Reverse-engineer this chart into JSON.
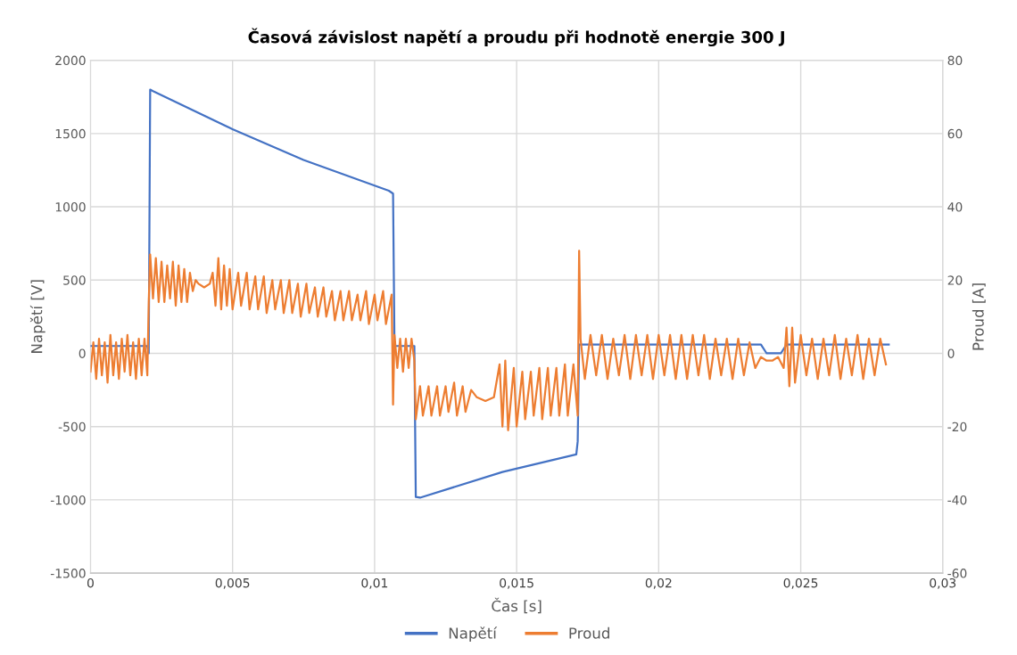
{
  "chart_data": {
    "type": "line",
    "title": "Časová závislost napětí a proudu při hodnotě energie 300 J",
    "xlabel": "Čas [s]",
    "ylabel": "Napětí [V]",
    "y2label": "Proud [A]",
    "xlim": [
      0,
      0.03
    ],
    "xticks": [
      0,
      {
        "value": 0.005,
        "label": "0,005"
      },
      {
        "value": 0.01,
        "label": "0,01"
      },
      {
        "value": 0.015,
        "label": "0,015"
      },
      {
        "value": 0.02,
        "label": "0,02"
      },
      {
        "value": 0.025,
        "label": "0,025"
      },
      {
        "value": 0.03,
        "label": "0,03"
      }
    ],
    "ylim": [
      -1500,
      2000
    ],
    "yticks": [
      -1500,
      -1000,
      -500,
      0,
      500,
      1000,
      1500,
      2000
    ],
    "y2lim": [
      -60,
      80
    ],
    "y2ticks": [
      -60,
      -40,
      -20,
      0,
      20,
      40,
      60,
      80
    ],
    "grid": true,
    "legend": "bottom",
    "marker": "none",
    "line_style": "solid",
    "series": [
      {
        "name": "Napětí",
        "color": "#4472c4",
        "x": [
          0,
          0.002,
          0.00205,
          0.0021,
          0.0022,
          0.005,
          0.0075,
          0.0105,
          0.01065,
          0.0107,
          0.0114,
          0.01145,
          0.0116,
          0.0145,
          0.0171,
          0.01715,
          0.0172,
          0.0236,
          0.0238,
          0.0243,
          0.0245,
          0.0281
        ],
        "values": [
          50,
          50,
          0,
          1800,
          1790,
          1530,
          1320,
          1110,
          1090,
          50,
          50,
          -980,
          -985,
          -810,
          -690,
          -600,
          60,
          60,
          0,
          0,
          60,
          60
        ]
      },
      {
        "name": "Proud",
        "color": "#ed7d31",
        "axis": "y2",
        "x": [
          0,
          0.0001,
          0.0002,
          0.0003,
          0.0004,
          0.0005,
          0.0006,
          0.0007,
          0.0008,
          0.0009,
          0.001,
          0.0011,
          0.0012,
          0.0013,
          0.0014,
          0.0015,
          0.0016,
          0.0017,
          0.0018,
          0.0019,
          0.002,
          0.00205,
          0.0021,
          0.0022,
          0.0023,
          0.0024,
          0.0025,
          0.0026,
          0.0027,
          0.0028,
          0.0029,
          0.003,
          0.0031,
          0.0032,
          0.0033,
          0.0034,
          0.0035,
          0.0036,
          0.0037,
          0.0038,
          0.004,
          0.0042,
          0.0043,
          0.0044,
          0.0045,
          0.0046,
          0.0047,
          0.0048,
          0.0049,
          0.005,
          0.0052,
          0.0053,
          0.0055,
          0.0056,
          0.0058,
          0.0059,
          0.0061,
          0.0062,
          0.0064,
          0.0065,
          0.0067,
          0.0068,
          0.007,
          0.0071,
          0.0073,
          0.0074,
          0.0076,
          0.0077,
          0.0079,
          0.008,
          0.0082,
          0.0083,
          0.0085,
          0.0086,
          0.0088,
          0.0089,
          0.0091,
          0.0092,
          0.0094,
          0.0095,
          0.0097,
          0.0098,
          0.01,
          0.0101,
          0.0103,
          0.0104,
          0.0106,
          0.01065,
          0.0107,
          0.0108,
          0.0109,
          0.011,
          0.0111,
          0.0112,
          0.0113,
          0.0114,
          0.01145,
          0.0116,
          0.0117,
          0.0119,
          0.012,
          0.0122,
          0.0123,
          0.0125,
          0.0126,
          0.0128,
          0.0129,
          0.0131,
          0.0132,
          0.0134,
          0.0136,
          0.0139,
          0.0142,
          0.0144,
          0.0145,
          0.0146,
          0.0147,
          0.0149,
          0.015,
          0.0152,
          0.0153,
          0.0155,
          0.0156,
          0.0158,
          0.0159,
          0.0161,
          0.0162,
          0.0164,
          0.0165,
          0.0167,
          0.0168,
          0.017,
          0.01715,
          0.0172,
          0.01725,
          0.0174,
          0.0176,
          0.0178,
          0.018,
          0.0182,
          0.0184,
          0.0186,
          0.0188,
          0.019,
          0.0192,
          0.0194,
          0.0196,
          0.0198,
          0.02,
          0.0202,
          0.0204,
          0.0206,
          0.0208,
          0.021,
          0.0212,
          0.0214,
          0.0216,
          0.0218,
          0.022,
          0.0222,
          0.0224,
          0.0226,
          0.0228,
          0.023,
          0.0232,
          0.0234,
          0.0236,
          0.0238,
          0.024,
          0.0242,
          0.0244,
          0.0245,
          0.0246,
          0.0247,
          0.0248,
          0.025,
          0.0252,
          0.0254,
          0.0256,
          0.0258,
          0.026,
          0.0262,
          0.0264,
          0.0266,
          0.0268,
          0.027,
          0.0272,
          0.0274,
          0.0276,
          0.0278,
          0.028
        ],
        "values": [
          -5,
          3,
          -7,
          4,
          -6,
          3,
          -8,
          5,
          -6,
          3,
          -7,
          4,
          -5,
          5,
          -6,
          3,
          -7,
          4,
          -6,
          4,
          -6,
          14,
          27,
          15,
          26,
          14,
          25,
          14,
          24,
          15,
          25,
          13,
          24,
          14,
          23,
          14,
          22,
          17,
          20,
          19,
          18,
          19,
          22,
          13,
          26,
          12,
          24,
          13,
          23,
          12,
          22,
          13,
          22,
          12,
          21,
          12,
          21,
          11,
          20,
          12,
          20,
          11,
          20,
          11,
          19,
          10,
          19,
          11,
          18,
          10,
          18,
          10,
          17,
          9,
          17,
          9,
          17,
          9,
          16,
          9,
          17,
          8,
          16,
          9,
          17,
          8,
          16,
          -14,
          5,
          -4,
          4,
          -5,
          4,
          -4,
          4,
          -2,
          -18,
          -9,
          -17,
          -9,
          -17,
          -9,
          -17,
          -9,
          -16,
          -8,
          -17,
          -9,
          -16,
          -10,
          -12,
          -13,
          -12,
          -3,
          -20,
          -2,
          -21,
          -4,
          -20,
          -5,
          -18,
          -5,
          -17,
          -4,
          -18,
          -4,
          -17,
          -4,
          -17,
          -3,
          -17,
          -3,
          -17,
          28,
          4,
          -7,
          5,
          -6,
          5,
          -7,
          4,
          -6,
          5,
          -7,
          5,
          -6,
          5,
          -7,
          5,
          -6,
          5,
          -7,
          5,
          -7,
          5,
          -6,
          5,
          -7,
          4,
          -6,
          4,
          -7,
          4,
          -6,
          3,
          -4,
          -1,
          -2,
          -2,
          -1,
          -4,
          7,
          -9,
          7,
          -8,
          5,
          -6,
          4,
          -7,
          4,
          -6,
          5,
          -7,
          4,
          -6,
          5,
          -7,
          4,
          -6,
          4,
          -3
        ]
      }
    ]
  }
}
